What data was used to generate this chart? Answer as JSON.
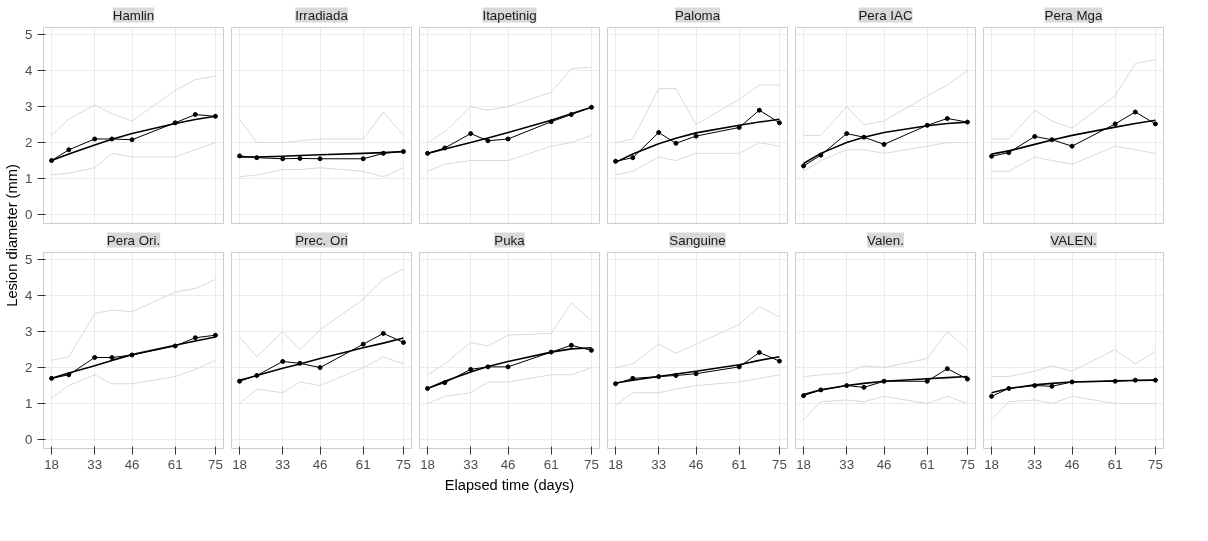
{
  "chart_data": [
    {
      "type": "line",
      "title": "Hamlin",
      "ylabel": "Lesion diameter (mm)",
      "x": [
        18,
        24,
        33,
        39,
        46,
        61,
        68,
        75
      ],
      "xlim": [
        15.2,
        77.8
      ],
      "ylim": [
        -0.25,
        5.2
      ],
      "xticks": [
        18,
        33,
        46,
        61,
        75
      ],
      "yticks": [
        0,
        1,
        2,
        3,
        4,
        5
      ],
      "grid": true,
      "tick_labels": "y",
      "series": [
        {
          "color": "#d9d9d9",
          "marker": "none",
          "values": [
            2.2,
            2.65,
            3.05,
            2.8,
            2.6,
            3.45,
            3.75,
            3.85
          ]
        },
        {
          "color": "#d9d9d9",
          "marker": "none",
          "values": [
            1.1,
            1.15,
            1.3,
            1.7,
            1.6,
            1.6,
            1.8,
            2.0
          ]
        },
        {
          "color": "#000000",
          "marker": "none",
          "values": [
            1.5,
            1.68,
            1.93,
            2.09,
            2.25,
            2.53,
            2.64,
            2.73
          ]
        },
        {
          "color": "#000000",
          "marker": "circle",
          "values": [
            1.5,
            1.8,
            2.1,
            2.1,
            2.08,
            2.55,
            2.78,
            2.73
          ]
        }
      ]
    },
    {
      "type": "line",
      "title": "Irradiada",
      "x": [
        18,
        24,
        33,
        39,
        46,
        61,
        68,
        75
      ],
      "xlim": [
        15.2,
        77.8
      ],
      "ylim": [
        -0.25,
        5.2
      ],
      "xticks": [
        18,
        33,
        46,
        61,
        75
      ],
      "yticks": [
        0,
        1,
        2,
        3,
        4,
        5
      ],
      "grid": true,
      "tick_labels": false,
      "series": [
        {
          "color": "#d9d9d9",
          "marker": "none",
          "values": [
            2.65,
            2.0,
            2.0,
            2.05,
            2.1,
            2.1,
            2.85,
            2.2
          ]
        },
        {
          "color": "#d9d9d9",
          "marker": "none",
          "values": [
            1.05,
            1.1,
            1.25,
            1.25,
            1.3,
            1.2,
            1.05,
            1.3
          ]
        },
        {
          "color": "#000000",
          "marker": "none",
          "values": [
            1.6,
            1.6,
            1.62,
            1.64,
            1.66,
            1.7,
            1.72,
            1.75
          ]
        },
        {
          "color": "#000000",
          "marker": "circle",
          "values": [
            1.63,
            1.58,
            1.55,
            1.56,
            1.55,
            1.55,
            1.7,
            1.75
          ]
        }
      ]
    },
    {
      "type": "line",
      "title": "Itapetinig",
      "x": [
        18,
        24,
        33,
        39,
        46,
        61,
        68,
        75
      ],
      "xlim": [
        15.2,
        77.8
      ],
      "ylim": [
        -0.25,
        5.2
      ],
      "xticks": [
        18,
        33,
        46,
        61,
        75
      ],
      "yticks": [
        0,
        1,
        2,
        3,
        4,
        5
      ],
      "grid": true,
      "tick_labels": false,
      "series": [
        {
          "color": "#d9d9d9",
          "marker": "none",
          "values": [
            2.0,
            2.3,
            3.0,
            2.9,
            3.0,
            3.4,
            4.05,
            4.1
          ]
        },
        {
          "color": "#d9d9d9",
          "marker": "none",
          "values": [
            1.2,
            1.4,
            1.5,
            1.5,
            1.5,
            1.9,
            2.0,
            2.2
          ]
        },
        {
          "color": "#000000",
          "marker": "none",
          "values": [
            1.7,
            1.82,
            2.0,
            2.13,
            2.28,
            2.62,
            2.8,
            2.98
          ]
        },
        {
          "color": "#000000",
          "marker": "circle",
          "values": [
            1.7,
            1.85,
            2.25,
            2.05,
            2.1,
            2.58,
            2.78,
            2.98
          ]
        }
      ]
    },
    {
      "type": "line",
      "title": "Paloma",
      "x": [
        18,
        24,
        33,
        39,
        46,
        61,
        68,
        75
      ],
      "xlim": [
        15.2,
        77.8
      ],
      "ylim": [
        -0.25,
        5.2
      ],
      "xticks": [
        18,
        33,
        46,
        61,
        75
      ],
      "yticks": [
        0,
        1,
        2,
        3,
        4,
        5
      ],
      "grid": true,
      "tick_labels": false,
      "series": [
        {
          "color": "#d9d9d9",
          "marker": "none",
          "values": [
            2.0,
            2.1,
            3.5,
            3.5,
            2.5,
            3.2,
            3.6,
            3.6
          ]
        },
        {
          "color": "#d9d9d9",
          "marker": "none",
          "values": [
            1.1,
            1.2,
            1.6,
            1.5,
            1.7,
            1.7,
            2.0,
            1.9
          ]
        },
        {
          "color": "#000000",
          "marker": "none",
          "values": [
            1.45,
            1.68,
            1.97,
            2.12,
            2.27,
            2.48,
            2.57,
            2.65
          ]
        },
        {
          "color": "#000000",
          "marker": "circle",
          "values": [
            1.48,
            1.58,
            2.28,
            1.98,
            2.18,
            2.42,
            2.9,
            2.55
          ]
        }
      ]
    },
    {
      "type": "line",
      "title": "Pera IAC",
      "x": [
        18,
        24,
        33,
        39,
        46,
        61,
        68,
        75
      ],
      "xlim": [
        15.2,
        77.8
      ],
      "ylim": [
        -0.25,
        5.2
      ],
      "xticks": [
        18,
        33,
        46,
        61,
        75
      ],
      "yticks": [
        0,
        1,
        2,
        3,
        4,
        5
      ],
      "grid": true,
      "tick_labels": false,
      "series": [
        {
          "color": "#d9d9d9",
          "marker": "none",
          "values": [
            2.2,
            2.2,
            3.0,
            2.5,
            2.6,
            3.3,
            3.6,
            4.0
          ]
        },
        {
          "color": "#d9d9d9",
          "marker": "none",
          "values": [
            1.2,
            1.5,
            1.8,
            1.8,
            1.7,
            1.9,
            2.0,
            2.0
          ]
        },
        {
          "color": "#000000",
          "marker": "none",
          "values": [
            1.42,
            1.7,
            2.0,
            2.15,
            2.28,
            2.47,
            2.53,
            2.57
          ]
        },
        {
          "color": "#000000",
          "marker": "circle",
          "values": [
            1.35,
            1.65,
            2.25,
            2.15,
            1.95,
            2.48,
            2.67,
            2.57
          ]
        }
      ]
    },
    {
      "type": "line",
      "title": "Pera Mga",
      "x": [
        18,
        24,
        33,
        39,
        46,
        61,
        68,
        75
      ],
      "xlim": [
        15.2,
        77.8
      ],
      "ylim": [
        -0.25,
        5.2
      ],
      "xticks": [
        18,
        33,
        46,
        61,
        75
      ],
      "yticks": [
        0,
        1,
        2,
        3,
        4,
        5
      ],
      "grid": true,
      "tick_labels": false,
      "series": [
        {
          "color": "#d9d9d9",
          "marker": "none",
          "values": [
            2.1,
            2.1,
            2.9,
            2.6,
            2.4,
            3.3,
            4.2,
            4.3
          ]
        },
        {
          "color": "#d9d9d9",
          "marker": "none",
          "values": [
            1.2,
            1.2,
            1.6,
            1.5,
            1.4,
            1.9,
            1.8,
            1.7
          ]
        },
        {
          "color": "#000000",
          "marker": "none",
          "values": [
            1.68,
            1.77,
            1.95,
            2.07,
            2.2,
            2.43,
            2.53,
            2.62
          ]
        },
        {
          "color": "#000000",
          "marker": "circle",
          "values": [
            1.62,
            1.72,
            2.17,
            2.08,
            1.9,
            2.52,
            2.85,
            2.52
          ]
        }
      ]
    },
    {
      "type": "line",
      "title": "Pera Ori.",
      "x": [
        18,
        24,
        33,
        39,
        46,
        61,
        68,
        75
      ],
      "xlim": [
        15.2,
        77.8
      ],
      "ylim": [
        -0.25,
        5.2
      ],
      "xticks": [
        18,
        33,
        46,
        61,
        75
      ],
      "yticks": [
        0,
        1,
        2,
        3,
        4,
        5
      ],
      "grid": true,
      "series": [
        {
          "color": "#d9d9d9",
          "marker": "none",
          "values": [
            2.2,
            2.3,
            3.5,
            3.6,
            3.55,
            4.1,
            4.2,
            4.45
          ]
        },
        {
          "color": "#d9d9d9",
          "marker": "none",
          "values": [
            1.15,
            1.5,
            1.8,
            1.55,
            1.55,
            1.75,
            1.95,
            2.2
          ]
        },
        {
          "color": "#000000",
          "marker": "none",
          "values": [
            1.7,
            1.85,
            2.05,
            2.2,
            2.36,
            2.62,
            2.74,
            2.85
          ]
        },
        {
          "color": "#000000",
          "marker": "circle",
          "values": [
            1.7,
            1.8,
            2.28,
            2.28,
            2.35,
            2.6,
            2.83,
            2.9
          ]
        }
      ]
    },
    {
      "type": "line",
      "title": "Prec. Ori",
      "x": [
        18,
        24,
        33,
        39,
        46,
        61,
        68,
        75
      ],
      "xlim": [
        15.2,
        77.8
      ],
      "ylim": [
        -0.25,
        5.2
      ],
      "xticks": [
        18,
        33,
        46,
        61,
        75
      ],
      "yticks": [
        0,
        1,
        2,
        3,
        4,
        5
      ],
      "grid": true,
      "tick_labels": "x",
      "series": [
        {
          "color": "#d9d9d9",
          "marker": "none",
          "values": [
            2.85,
            2.3,
            3.0,
            2.5,
            3.05,
            3.9,
            4.45,
            4.75
          ]
        },
        {
          "color": "#d9d9d9",
          "marker": "none",
          "values": [
            1.0,
            1.4,
            1.3,
            1.6,
            1.5,
            2.0,
            2.3,
            2.1
          ]
        },
        {
          "color": "#000000",
          "marker": "none",
          "values": [
            1.65,
            1.78,
            1.98,
            2.1,
            2.25,
            2.55,
            2.68,
            2.82
          ]
        },
        {
          "color": "#000000",
          "marker": "circle",
          "values": [
            1.62,
            1.78,
            2.17,
            2.12,
            2.0,
            2.65,
            2.95,
            2.7
          ]
        }
      ]
    },
    {
      "type": "line",
      "title": "Puka",
      "xlabel": "Elapsed time (days)",
      "x": [
        18,
        24,
        33,
        39,
        46,
        61,
        68,
        75
      ],
      "xlim": [
        15.2,
        77.8
      ],
      "ylim": [
        -0.25,
        5.2
      ],
      "xticks": [
        18,
        33,
        46,
        61,
        75
      ],
      "yticks": [
        0,
        1,
        2,
        3,
        4,
        5
      ],
      "grid": true,
      "tick_labels": "x",
      "series": [
        {
          "color": "#d9d9d9",
          "marker": "none",
          "values": [
            1.8,
            2.1,
            2.7,
            2.6,
            2.9,
            2.95,
            3.8,
            3.3
          ]
        },
        {
          "color": "#d9d9d9",
          "marker": "none",
          "values": [
            1.0,
            1.2,
            1.3,
            1.6,
            1.6,
            1.8,
            1.8,
            2.0
          ]
        },
        {
          "color": "#000000",
          "marker": "none",
          "values": [
            1.42,
            1.62,
            1.88,
            2.03,
            2.17,
            2.43,
            2.52,
            2.55
          ]
        },
        {
          "color": "#000000",
          "marker": "circle",
          "values": [
            1.42,
            1.58,
            1.95,
            2.02,
            2.02,
            2.43,
            2.62,
            2.48
          ]
        }
      ]
    },
    {
      "type": "line",
      "title": "Sanguine",
      "x": [
        18,
        24,
        33,
        39,
        46,
        61,
        68,
        75
      ],
      "xlim": [
        15.2,
        77.8
      ],
      "ylim": [
        -0.25,
        5.2
      ],
      "xticks": [
        18,
        33,
        46,
        61,
        75
      ],
      "yticks": [
        0,
        1,
        2,
        3,
        4,
        5
      ],
      "grid": true,
      "tick_labels": "x",
      "series": [
        {
          "color": "#d9d9d9",
          "marker": "none",
          "values": [
            2.0,
            2.1,
            2.65,
            2.4,
            2.65,
            3.2,
            3.7,
            3.4
          ]
        },
        {
          "color": "#d9d9d9",
          "marker": "none",
          "values": [
            0.95,
            1.3,
            1.3,
            1.4,
            1.5,
            1.6,
            1.7,
            1.8
          ]
        },
        {
          "color": "#000000",
          "marker": "none",
          "values": [
            1.57,
            1.65,
            1.75,
            1.82,
            1.9,
            2.08,
            2.2,
            2.3
          ]
        },
        {
          "color": "#000000",
          "marker": "circle",
          "values": [
            1.55,
            1.7,
            1.75,
            1.78,
            1.83,
            2.02,
            2.42,
            2.18
          ]
        }
      ]
    },
    {
      "type": "line",
      "title": "Valen.",
      "x": [
        18,
        24,
        33,
        39,
        46,
        61,
        68,
        75
      ],
      "xlim": [
        15.2,
        77.8
      ],
      "ylim": [
        -0.25,
        5.2
      ],
      "xticks": [
        18,
        33,
        46,
        61,
        75
      ],
      "yticks": [
        0,
        1,
        2,
        3,
        4,
        5
      ],
      "grid": true,
      "tick_labels": "x",
      "series": [
        {
          "color": "#d9d9d9",
          "marker": "none",
          "values": [
            1.75,
            1.8,
            1.85,
            2.05,
            2.0,
            2.25,
            3.0,
            2.5
          ]
        },
        {
          "color": "#d9d9d9",
          "marker": "none",
          "values": [
            0.55,
            1.05,
            1.1,
            1.05,
            1.2,
            1.0,
            1.2,
            1.0
          ]
        },
        {
          "color": "#000000",
          "marker": "none",
          "values": [
            1.25,
            1.38,
            1.5,
            1.56,
            1.62,
            1.69,
            1.72,
            1.75
          ]
        },
        {
          "color": "#000000",
          "marker": "circle",
          "values": [
            1.22,
            1.38,
            1.5,
            1.45,
            1.62,
            1.62,
            1.97,
            1.68
          ]
        }
      ]
    },
    {
      "type": "line",
      "title": "VALEN.",
      "x": [
        18,
        24,
        33,
        39,
        46,
        61,
        68,
        75
      ],
      "xlim": [
        15.2,
        77.8
      ],
      "ylim": [
        -0.25,
        5.2
      ],
      "xticks": [
        18,
        33,
        46,
        61,
        75
      ],
      "yticks": [
        0,
        1,
        2,
        3,
        4,
        5
      ],
      "grid": true,
      "tick_labels": "x",
      "series": [
        {
          "color": "#d9d9d9",
          "marker": "none",
          "values": [
            1.75,
            1.75,
            1.9,
            2.05,
            1.9,
            2.5,
            2.1,
            2.45
          ]
        },
        {
          "color": "#d9d9d9",
          "marker": "none",
          "values": [
            0.55,
            1.05,
            1.1,
            1.0,
            1.2,
            1.0,
            1.0,
            1.0
          ]
        },
        {
          "color": "#000000",
          "marker": "none",
          "values": [
            1.3,
            1.42,
            1.52,
            1.56,
            1.6,
            1.63,
            1.64,
            1.65
          ]
        },
        {
          "color": "#000000",
          "marker": "circle",
          "values": [
            1.2,
            1.42,
            1.5,
            1.48,
            1.6,
            1.62,
            1.65,
            1.65
          ]
        }
      ]
    }
  ]
}
